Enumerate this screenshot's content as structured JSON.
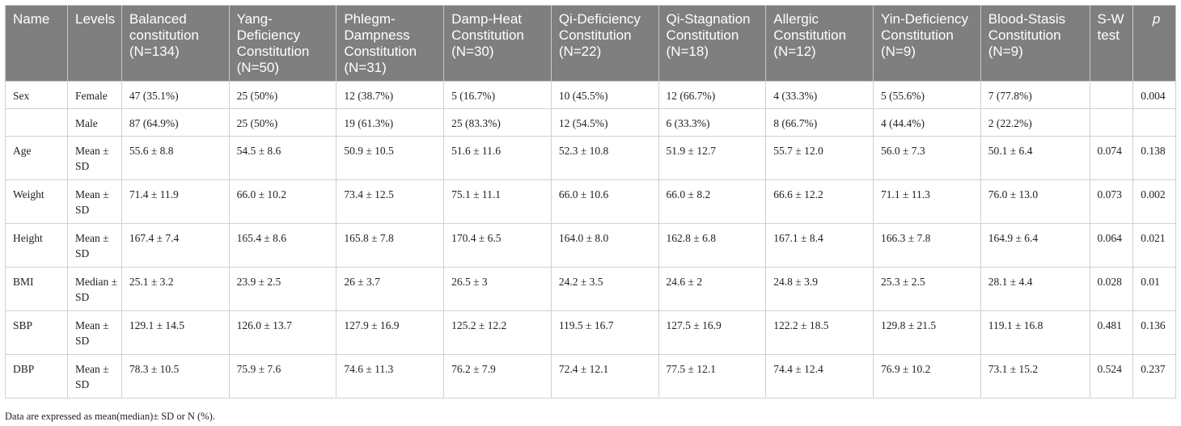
{
  "table": {
    "headers": [
      "Name",
      "Levels",
      "Balanced constitution (N=134)",
      "Yang-Deficiency Constitution (N=50)",
      "Phlegm-Dampness Constitution (N=31)",
      "Damp-Heat Constitution (N=30)",
      "Qi-Deficiency Constitution (N=22)",
      "Qi-Stagnation Constitution (N=18)",
      "Allergic Constitution (N=12)",
      "Yin-Deficiency Constitution (N=9)",
      "Blood-Stasis Constitution (N=9)",
      "S-W test",
      "p"
    ],
    "rows": [
      [
        "Sex",
        "Female",
        "47 (35.1%)",
        "25 (50%)",
        "12 (38.7%)",
        "5 (16.7%)",
        "10 (45.5%)",
        "12 (66.7%)",
        "4 (33.3%)",
        "5 (55.6%)",
        "7 (77.8%)",
        "",
        "0.004"
      ],
      [
        "",
        "Male",
        "87 (64.9%)",
        "25 (50%)",
        "19 (61.3%)",
        "25 (83.3%)",
        "12 (54.5%)",
        "6 (33.3%)",
        "8 (66.7%)",
        "4 (44.4%)",
        "2 (22.2%)",
        "",
        ""
      ],
      [
        "Age",
        "Mean ± SD",
        "55.6 ± 8.8",
        "54.5 ± 8.6",
        "50.9 ± 10.5",
        "51.6 ± 11.6",
        "52.3 ± 10.8",
        "51.9 ± 12.7",
        "55.7 ± 12.0",
        "56.0 ± 7.3",
        "50.1 ± 6.4",
        "0.074",
        "0.138"
      ],
      [
        "Weight",
        "Mean ± SD",
        "71.4 ± 11.9",
        "66.0 ± 10.2",
        "73.4 ± 12.5",
        "75.1 ± 11.1",
        "66.0 ± 10.6",
        "66.0 ± 8.2",
        "66.6 ± 12.2",
        "71.1 ± 11.3",
        "76.0 ± 13.0",
        "0.073",
        "0.002"
      ],
      [
        "Height",
        "Mean ± SD",
        "167.4 ± 7.4",
        "165.4 ± 8.6",
        "165.8 ± 7.8",
        "170.4 ± 6.5",
        "164.0 ± 8.0",
        "162.8 ± 6.8",
        "167.1 ± 8.4",
        "166.3 ± 7.8",
        "164.9 ± 6.4",
        "0.064",
        "0.021"
      ],
      [
        "BMI",
        "Median ± SD",
        "25.1 ± 3.2",
        "23.9 ± 2.5",
        "26 ± 3.7",
        "26.5 ± 3",
        "24.2 ± 3.5",
        "24.6 ± 2",
        "24.8 ± 3.9",
        "25.3 ± 2.5",
        "28.1 ± 4.4",
        "0.028",
        "0.01"
      ],
      [
        "SBP",
        "Mean ± SD",
        "129.1 ± 14.5",
        "126.0 ± 13.7",
        "127.9 ± 16.9",
        "125.2 ± 12.2",
        "119.5 ± 16.7",
        "127.5 ± 16.9",
        "122.2 ± 18.5",
        "129.8 ± 21.5",
        "119.1 ± 16.8",
        "0.481",
        "0.136"
      ],
      [
        "DBP",
        "Mean ± SD",
        "78.3 ± 10.5",
        "75.9 ± 7.6",
        "74.6 ± 11.3",
        "76.2 ± 7.9",
        "72.4 ± 12.1",
        "77.5 ± 12.1",
        "74.4 ± 12.4",
        "76.9 ± 10.2",
        "73.1 ± 15.2",
        "0.524",
        "0.237"
      ]
    ]
  },
  "footnote": "Data are expressed as mean(median)± SD or N (%).",
  "colors": {
    "header_bg": "#7f7f7f",
    "header_text": "#ffffff",
    "body_text": "#222222",
    "grid_line": "#d0d0d0"
  }
}
